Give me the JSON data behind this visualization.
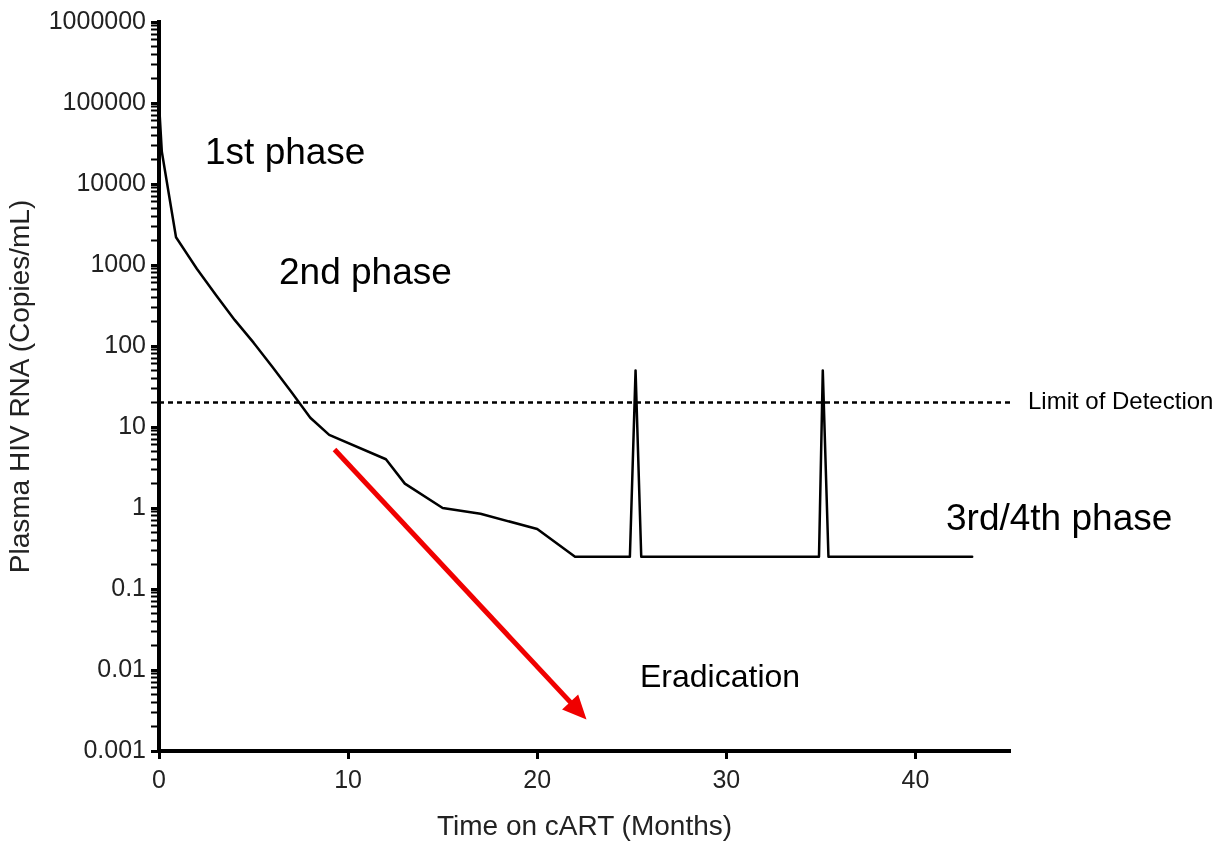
{
  "chart_data": {
    "type": "line",
    "xlabel": "Time on cART (Months)",
    "ylabel": "Plasma HIV RNA (Copies/mL)",
    "x": [
      0,
      0.15,
      0.9,
      2,
      3,
      4,
      5,
      6,
      7,
      8,
      9,
      12,
      13,
      15,
      17,
      20,
      22,
      24.9,
      25.2,
      25.5,
      34.9,
      35.1,
      35.4,
      43
    ],
    "series": [
      {
        "color": "#000000",
        "values": [
          100000,
          25000,
          2200,
          900,
          430,
          210,
          110,
          55,
          27,
          13,
          8,
          4,
          2,
          1,
          0.85,
          0.55,
          0.25,
          0.25,
          50,
          0.25,
          0.25,
          50,
          0.25,
          0.25
        ]
      }
    ],
    "line_style": "solid",
    "log": "y",
    "xlim": [
      0,
      45
    ],
    "xticks": [
      0,
      10,
      20,
      30,
      40
    ],
    "ylim": [
      0.001,
      1000000
    ],
    "yticks": [
      0.001,
      {
        "value": 0.002,
        "label": null
      },
      {
        "value": 0.003,
        "label": null
      },
      {
        "value": 0.004,
        "label": null
      },
      {
        "value": 0.005,
        "label": null
      },
      {
        "value": 0.006,
        "label": null
      },
      {
        "value": 0.007,
        "label": null
      },
      {
        "value": 0.008,
        "label": null
      },
      {
        "value": 0.009,
        "label": null
      },
      0.01,
      {
        "value": 0.02,
        "label": null
      },
      {
        "value": 0.03,
        "label": null
      },
      {
        "value": 0.04,
        "label": null
      },
      {
        "value": 0.05,
        "label": null
      },
      {
        "value": 0.06,
        "label": null
      },
      {
        "value": 0.07,
        "label": null
      },
      {
        "value": 0.08,
        "label": null
      },
      {
        "value": 0.09,
        "label": null
      },
      0.1,
      {
        "value": 0.2,
        "label": null
      },
      {
        "value": 0.3,
        "label": null
      },
      {
        "value": 0.4,
        "label": null
      },
      {
        "value": 0.5,
        "label": null
      },
      {
        "value": 0.6,
        "label": null
      },
      {
        "value": 0.7,
        "label": null
      },
      {
        "value": 0.8,
        "label": null
      },
      {
        "value": 0.9,
        "label": null
      },
      1,
      {
        "value": 2,
        "label": null
      },
      {
        "value": 3,
        "label": null
      },
      {
        "value": 4,
        "label": null
      },
      {
        "value": 5,
        "label": null
      },
      {
        "value": 6,
        "label": null
      },
      {
        "value": 7,
        "label": null
      },
      {
        "value": 8,
        "label": null
      },
      {
        "value": 9,
        "label": null
      },
      10,
      {
        "value": 20,
        "label": null
      },
      {
        "value": 30,
        "label": null
      },
      {
        "value": 40,
        "label": null
      },
      {
        "value": 50,
        "label": null
      },
      {
        "value": 60,
        "label": null
      },
      {
        "value": 70,
        "label": null
      },
      {
        "value": 80,
        "label": null
      },
      {
        "value": 90,
        "label": null
      },
      100,
      {
        "value": 200,
        "label": null
      },
      {
        "value": 300,
        "label": null
      },
      {
        "value": 400,
        "label": null
      },
      {
        "value": 500,
        "label": null
      },
      {
        "value": 600,
        "label": null
      },
      {
        "value": 700,
        "label": null
      },
      {
        "value": 800,
        "label": null
      },
      {
        "value": 900,
        "label": null
      },
      1000,
      {
        "value": 2000,
        "label": null
      },
      {
        "value": 3000,
        "label": null
      },
      {
        "value": 4000,
        "label": null
      },
      {
        "value": 5000,
        "label": null
      },
      {
        "value": 6000,
        "label": null
      },
      {
        "value": 7000,
        "label": null
      },
      {
        "value": 8000,
        "label": null
      },
      {
        "value": 9000,
        "label": null
      },
      10000,
      {
        "value": 20000,
        "label": null
      },
      {
        "value": 30000,
        "label": null
      },
      {
        "value": 40000,
        "label": null
      },
      {
        "value": 50000,
        "label": null
      },
      {
        "value": 60000,
        "label": null
      },
      {
        "value": 70000,
        "label": null
      },
      {
        "value": 80000,
        "label": null
      },
      {
        "value": 90000,
        "label": null
      },
      100000,
      {
        "value": 200000,
        "label": null
      },
      {
        "value": 300000,
        "label": null
      },
      {
        "value": 400000,
        "label": null
      },
      {
        "value": 500000,
        "label": null
      },
      {
        "value": 600000,
        "label": null
      },
      {
        "value": 700000,
        "label": null
      },
      {
        "value": 800000,
        "label": null
      },
      {
        "value": 900000,
        "label": null
      },
      1000000
    ],
    "ref_lines": [
      {
        "axis": "y",
        "value": 20,
        "label": "Limit of Detection",
        "color": "#000000",
        "line_style": "dashed"
      }
    ],
    "annotations": [
      "1st phase",
      "2nd phase",
      "3rd/4th phase",
      "Eradication"
    ]
  }
}
